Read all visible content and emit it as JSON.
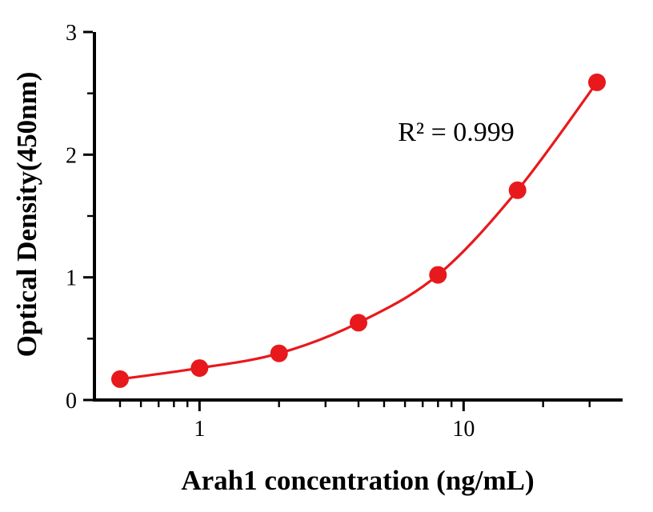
{
  "chart_data": {
    "type": "line",
    "x": [
      0.5,
      1,
      2,
      4,
      8,
      16,
      32
    ],
    "y": [
      0.17,
      0.26,
      0.38,
      0.63,
      1.02,
      1.71,
      2.59
    ],
    "title": "",
    "xlabel": "Arah1 concentration (ng/mL)",
    "ylabel": "Optical Density(450nm)",
    "xscale": "log",
    "xlim": [
      0.4,
      40
    ],
    "ylim": [
      0,
      3
    ],
    "xticks": [
      1,
      10
    ],
    "xticks_minor": [
      0.5,
      0.6,
      0.7,
      0.8,
      0.9,
      2,
      3,
      4,
      5,
      6,
      7,
      8,
      9,
      20,
      30
    ],
    "yticks": [
      0,
      1,
      2,
      3
    ],
    "yticks_minor": [
      0.5,
      1.5,
      2.5
    ],
    "annotation": "R² = 0.999",
    "grid": false,
    "legend": "none",
    "line_color": "#e8191c",
    "marker_color": "#e8191c",
    "marker": "circle",
    "marker_size": 11
  }
}
